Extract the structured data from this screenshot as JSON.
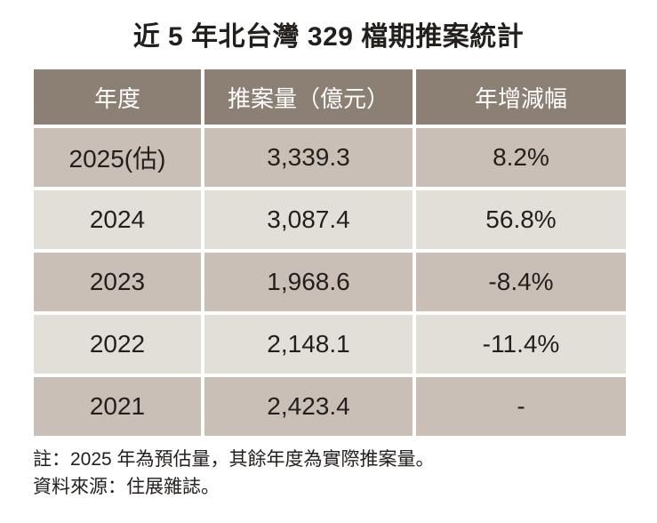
{
  "chart_data": {
    "type": "table",
    "title": "近 5 年北台灣 329 檔期推案統計",
    "columns": [
      "年度",
      "推案量（億元）",
      "年增減幅"
    ],
    "rows": [
      {
        "year": "2025(估)",
        "volume": "3,339.3",
        "change": "8.2%"
      },
      {
        "year": "2024",
        "volume": "3,087.4",
        "change": "56.8%"
      },
      {
        "year": "2023",
        "volume": "1,968.6",
        "change": "-8.4%"
      },
      {
        "year": "2022",
        "volume": "2,148.1",
        "change": "-11.4%"
      },
      {
        "year": "2021",
        "volume": "2,423.4",
        "change": "-"
      }
    ],
    "values_numeric": {
      "volume": [
        3339.3,
        3087.4,
        1968.6,
        2148.1,
        2423.4
      ],
      "change_pct": [
        8.2,
        56.8,
        -8.4,
        -11.4,
        null
      ]
    }
  },
  "notes": {
    "note": "註：2025 年為預估量，其餘年度為實際推案量。",
    "source": "資料來源：住展雜誌。"
  },
  "colors": {
    "header_bg": "#8c7f73",
    "header_text": "#ffffff",
    "row_dark": "#c9bfb7",
    "row_light": "#e2ded8",
    "text": "#231f1c",
    "background": "#ffffff"
  }
}
